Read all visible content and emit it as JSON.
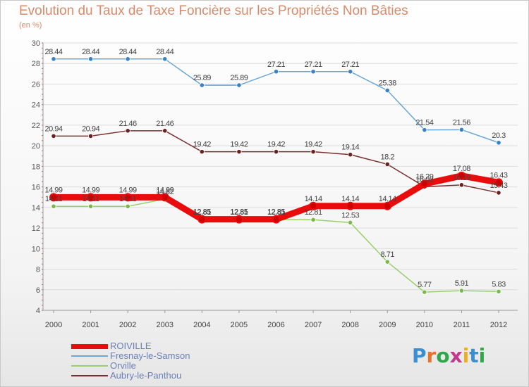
{
  "header": {
    "title": "Evolution du Taux de Taxe Foncière sur les Propriétés Non Bâties",
    "subtitle": "(en %)"
  },
  "brand": {
    "letters": [
      "P",
      "r",
      "o",
      "x",
      "i",
      "t",
      "i"
    ],
    "colors": [
      "#3a8fd0",
      "#e8742a",
      "#2fa84a",
      "#c23a8c",
      "#e8b020",
      "#3a8fd0",
      "#2fa84a"
    ]
  },
  "chart_data": {
    "type": "line",
    "x": [
      "2000",
      "2001",
      "2002",
      "2003",
      "2004",
      "2005",
      "2006",
      "2007",
      "2008",
      "2009",
      "2010",
      "2011",
      "2012"
    ],
    "ylim": [
      4,
      30
    ],
    "yticks": [
      4,
      6,
      8,
      10,
      12,
      14,
      16,
      18,
      20,
      22,
      24,
      26,
      28,
      30
    ],
    "grid": true,
    "legend_position": "bottom-left",
    "series": [
      {
        "name": "Fresnay-le-Samson",
        "color": "#6aa6d6",
        "point_color": "#3a80c4",
        "values": [
          28.44,
          28.44,
          28.44,
          28.44,
          25.89,
          25.89,
          27.21,
          27.21,
          27.21,
          25.38,
          21.54,
          21.56,
          20.3
        ],
        "labels": [
          "28.44",
          "28.44",
          "28.44",
          "28.44",
          "25.89",
          "25.89",
          "27.21",
          "27.21",
          "27.21",
          "25.38",
          "21.54",
          "21.56",
          "20.3"
        ]
      },
      {
        "name": "Aubry-le-Panthou",
        "color": "#7a3030",
        "point_color": "#6a2020",
        "values": [
          20.94,
          20.94,
          21.46,
          21.46,
          19.42,
          19.42,
          19.42,
          19.42,
          19.14,
          18.2,
          16.02,
          16.19,
          15.43
        ],
        "labels": [
          "20.94",
          "20.94",
          "21.46",
          "21.46",
          "19.42",
          "19.42",
          "19.42",
          "19.42",
          "19.14",
          "18.2",
          "16.02",
          "16.19",
          "15.43"
        ]
      },
      {
        "name": "Orville",
        "color": "#9ad06a",
        "point_color": "#7ab84a",
        "values": [
          14.11,
          14.11,
          14.11,
          14.82,
          12.81,
          12.81,
          12.81,
          12.81,
          12.53,
          8.71,
          5.77,
          5.91,
          5.83
        ],
        "labels": [
          "14.11",
          "14.11",
          "14.11",
          "14.82",
          "12.81",
          "12.81",
          "12.81",
          "12.81",
          "12.53",
          "8.71",
          "5.77",
          "5.91",
          "5.83"
        ]
      },
      {
        "name": "ROIVILLE",
        "color": "#e80c0c",
        "point_color": "#cc0000",
        "values": [
          14.99,
          14.99,
          14.99,
          14.99,
          12.85,
          12.85,
          12.85,
          14.14,
          14.14,
          14.14,
          16.29,
          17.08,
          16.43
        ],
        "labels": [
          "14.99",
          "14.99",
          "14.99",
          "14.99",
          "12.85",
          "12.85",
          "12.85",
          "14.14",
          "14.14",
          "14.14",
          "16.29",
          "17.08",
          "16.43"
        ]
      }
    ],
    "legend_order": [
      "ROIVILLE",
      "Fresnay-le-Samson",
      "Orville",
      "Aubry-le-Panthou"
    ]
  }
}
